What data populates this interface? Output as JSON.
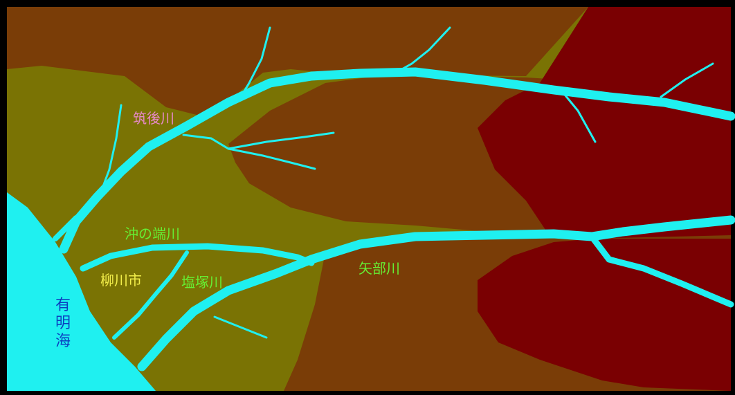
{
  "colors": {
    "border": "#000000",
    "lowland": "#7a7304",
    "hills": "#7a3d07",
    "mountains": "#7a0002",
    "water": "#1ff0f0",
    "label_chikugo": "#e889c8",
    "label_green": "#66ee33",
    "label_city": "#f2ee4a",
    "label_sea": "#0c3fc0"
  },
  "labels": {
    "chikugo_river": "筑後川",
    "okinohata_river": "沖の端川",
    "yanagawa_city": "柳川市",
    "shiozuka_river": "塩塚川",
    "yabe_river": "矢部川",
    "ariake_sea": [
      "有",
      "明",
      "海"
    ]
  }
}
